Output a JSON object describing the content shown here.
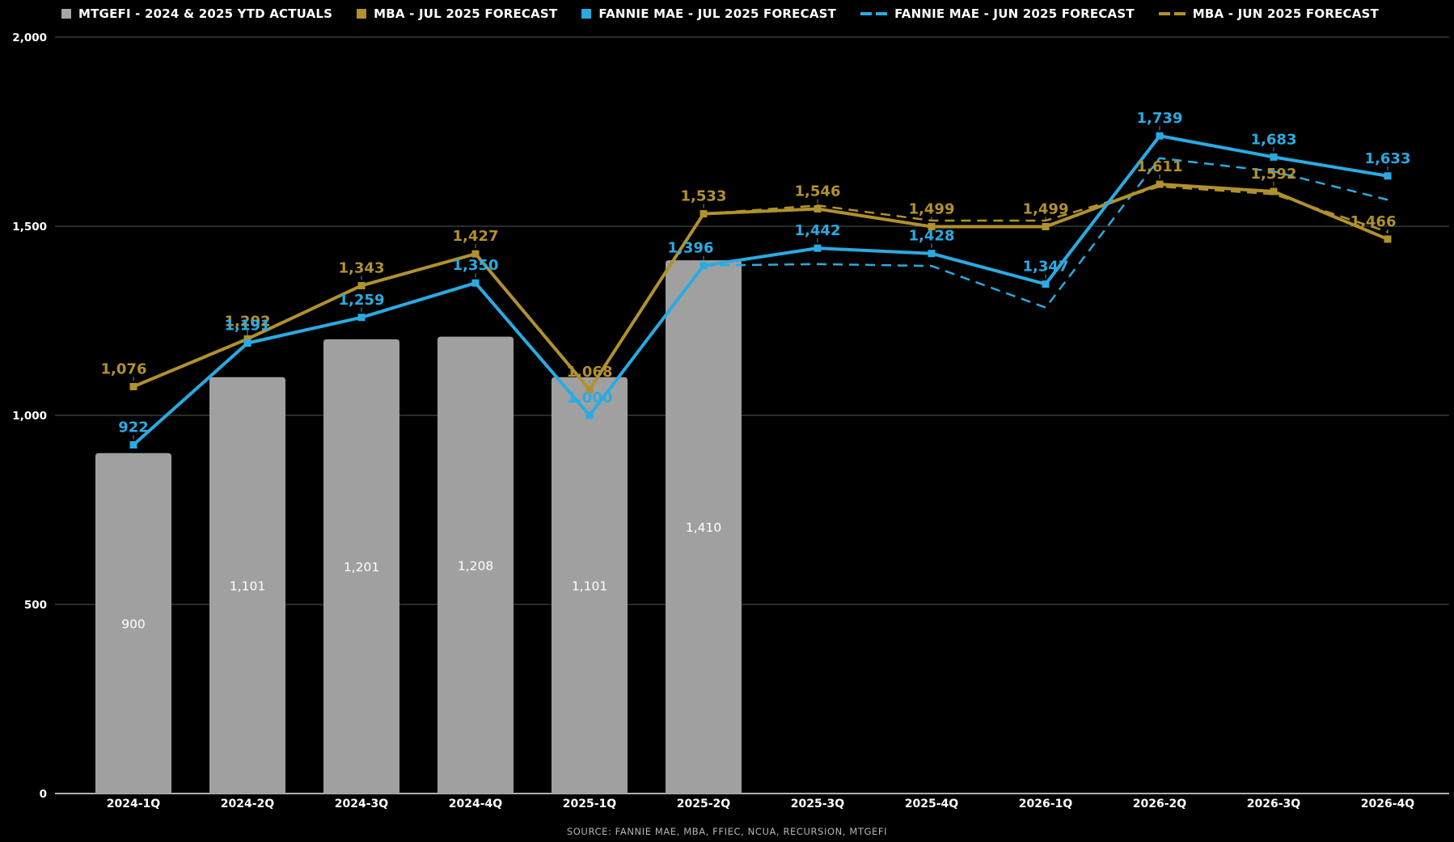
{
  "legend": {
    "items": [
      {
        "label": "MTGEFI - 2024 & 2025 YTD ACTUALS",
        "color": "#a6a6a6",
        "style": "square"
      },
      {
        "label": "MBA - JUL 2025 FORECAST",
        "color": "#b1912c",
        "style": "square"
      },
      {
        "label": "FANNIE MAE - JUL 2025 FORECAST",
        "color": "#29abe2",
        "style": "square"
      },
      {
        "label": "FANNIE MAE - JUN 2025 FORECAST",
        "color": "#29abe2",
        "style": "dash"
      },
      {
        "label": "MBA - JUN 2025 FORECAST",
        "color": "#b1912c",
        "style": "dash"
      }
    ]
  },
  "chart_data": {
    "type": "bar",
    "subtype": "combo-bar-line",
    "categories": [
      "2024-1Q",
      "2024-2Q",
      "2024-3Q",
      "2024-4Q",
      "2025-1Q",
      "2025-2Q",
      "2025-3Q",
      "2025-4Q",
      "2026-1Q",
      "2026-2Q",
      "2026-3Q",
      "2026-4Q"
    ],
    "series": [
      {
        "name": "MTGEFI - 2024 & 2025 YTD ACTUALS",
        "type": "bar",
        "style": "solid",
        "color": "#a0a0a0",
        "values": [
          900,
          1101,
          1201,
          1208,
          1101,
          1410,
          null,
          null,
          null,
          null,
          null,
          null
        ],
        "data_labels": true
      },
      {
        "name": "MBA - JUN 2025 FORECAST",
        "type": "line",
        "style": "dashed",
        "color": "#b1912c",
        "values": [
          null,
          null,
          null,
          null,
          null,
          1533,
          1555,
          1515,
          1515,
          1605,
          1585,
          1485
        ],
        "data_labels": false
      },
      {
        "name": "FANNIE MAE - JUN 2025 FORECAST",
        "type": "line",
        "style": "dashed",
        "color": "#29abe2",
        "values": [
          null,
          null,
          null,
          null,
          null,
          1396,
          1400,
          1395,
          1285,
          1680,
          1645,
          1570
        ],
        "data_labels": false
      },
      {
        "name": "MBA - JUL 2025 FORECAST",
        "type": "line",
        "style": "solid",
        "color": "#b1912c",
        "values": [
          1076,
          1202,
          1343,
          1427,
          1068,
          1533,
          1546,
          1499,
          1499,
          1611,
          1592,
          1466
        ],
        "data_labels": true
      },
      {
        "name": "FANNIE MAE - JUL 2025 FORECAST",
        "type": "line",
        "style": "solid",
        "color": "#29abe2",
        "values": [
          922,
          1191,
          1259,
          1350,
          1000,
          1396,
          1442,
          1428,
          1347,
          1739,
          1683,
          1633
        ],
        "data_labels": true
      }
    ],
    "title": "",
    "xlabel": "",
    "ylabel": "",
    "ylim": [
      0,
      2000
    ],
    "yticks": [
      0,
      500,
      1000,
      1500,
      2000
    ],
    "ytick_labels": [
      "0",
      "500",
      "1,000",
      "1,500",
      "2,000"
    ],
    "grid": true,
    "legend_position": "top",
    "background": "#000000",
    "source": "SOURCE: FANNIE MAE, MBA, FFIEC, NCUA, RECURSION, MTGEFI"
  }
}
